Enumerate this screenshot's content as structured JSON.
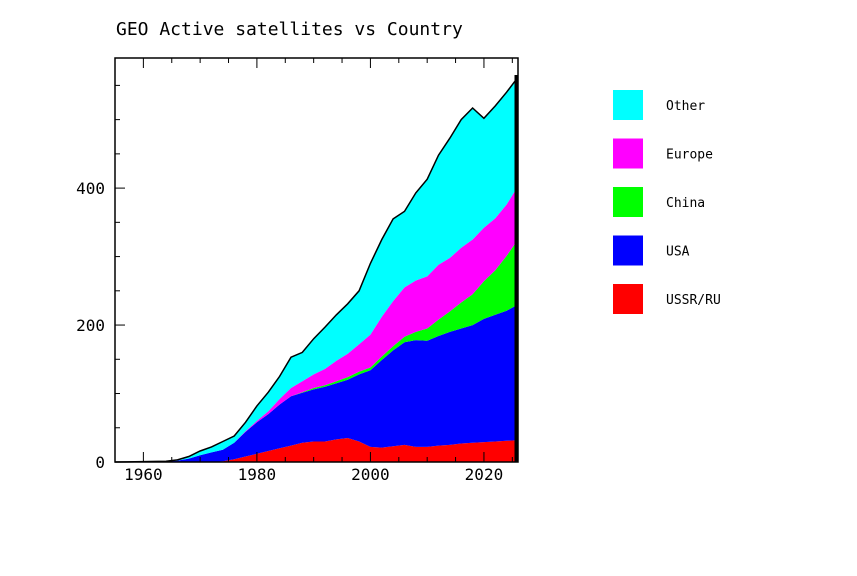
{
  "chart_data": {
    "type": "area",
    "stacked": true,
    "title": "GEO Active satellites vs Country",
    "xlabel": "",
    "ylabel": "",
    "xlim": [
      1955,
      2026
    ],
    "ylim": [
      0,
      590
    ],
    "x_ticks": [
      1960,
      1980,
      2000,
      2020
    ],
    "y_ticks": [
      0,
      200,
      400
    ],
    "grid": false,
    "legend_position": "right",
    "x": [
      1955,
      1964,
      1966,
      1968,
      1970,
      1972,
      1974,
      1976,
      1978,
      1980,
      1982,
      1984,
      1986,
      1988,
      1990,
      1992,
      1994,
      1996,
      1998,
      2000,
      2002,
      2004,
      2006,
      2008,
      2010,
      2012,
      2014,
      2016,
      2018,
      2020,
      2022,
      2024,
      2026
    ],
    "series": [
      {
        "name": "USSR/RU",
        "color": "#ff0000",
        "values": [
          0,
          0,
          0,
          0,
          0,
          0,
          1,
          4,
          8,
          12,
          16,
          20,
          24,
          28,
          30,
          30,
          33,
          35,
          30,
          22,
          21,
          23,
          25,
          22,
          22,
          24,
          25,
          27,
          28,
          29,
          30,
          31,
          32
        ]
      },
      {
        "name": "USA",
        "color": "#0000ff",
        "values": [
          0,
          1,
          2,
          5,
          10,
          14,
          17,
          24,
          36,
          46,
          54,
          64,
          72,
          73,
          76,
          80,
          82,
          85,
          98,
          112,
          128,
          140,
          150,
          156,
          155,
          160,
          165,
          168,
          172,
          180,
          185,
          190,
          198
        ]
      },
      {
        "name": "China",
        "color": "#00ff00",
        "values": [
          0,
          0,
          0,
          0,
          0,
          0,
          0,
          0,
          0,
          0,
          0,
          0,
          0,
          1,
          2,
          2,
          3,
          4,
          4,
          4,
          5,
          6,
          8,
          12,
          18,
          24,
          30,
          38,
          45,
          55,
          65,
          80,
          95
        ]
      },
      {
        "name": "Europe",
        "color": "#ff00ff",
        "values": [
          0,
          0,
          0,
          0,
          0,
          0,
          0,
          0,
          1,
          2,
          4,
          8,
          12,
          16,
          20,
          24,
          30,
          34,
          40,
          48,
          58,
          66,
          72,
          75,
          76,
          80,
          78,
          80,
          80,
          78,
          76,
          75,
          78
        ]
      },
      {
        "name": "Other",
        "color": "#00ffff",
        "values": [
          0,
          0,
          1,
          3,
          6,
          8,
          12,
          10,
          13,
          22,
          28,
          33,
          45,
          42,
          52,
          61,
          67,
          73,
          78,
          104,
          113,
          120,
          111,
          128,
          142,
          160,
          175,
          187,
          192,
          160,
          164,
          164,
          159
        ]
      }
    ]
  }
}
